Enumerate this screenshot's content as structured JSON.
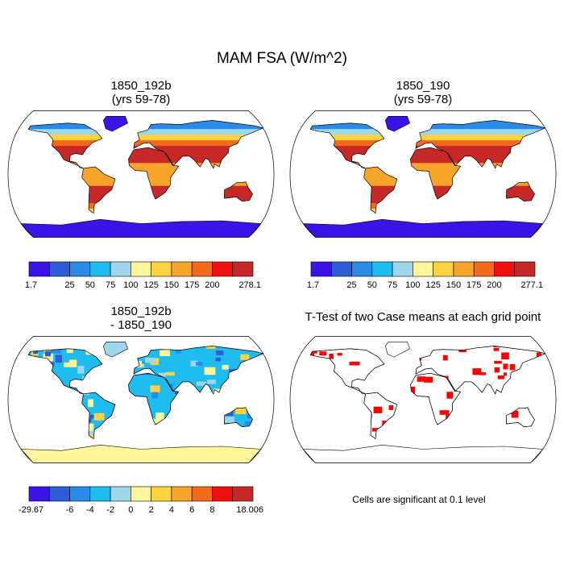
{
  "figure": {
    "title": "MAM FSA (W/m^2)"
  },
  "chart_data": [
    {
      "type": "heatmap",
      "title_line1": "1850_192b",
      "title_line2": "(yrs 59-78)",
      "projection": "Robinson world map",
      "colorbar": {
        "colors": [
          "#3a14e6",
          "#2e5cd6",
          "#2b8ae8",
          "#1fbcef",
          "#9ed6ec",
          "#fff59a",
          "#fcd240",
          "#f7a52a",
          "#f26a1a",
          "#f01010",
          "#c62828"
        ],
        "tick_labels": [
          "1.7",
          "25",
          "50",
          "75",
          "100",
          "125",
          "150",
          "175",
          "200",
          "278.1"
        ],
        "min": 1.7,
        "max": 278.1
      }
    },
    {
      "type": "heatmap",
      "title_line1": "1850_190",
      "title_line2": "(yrs 59-78)",
      "projection": "Robinson world map",
      "colorbar": {
        "colors": [
          "#3a14e6",
          "#2e5cd6",
          "#2b8ae8",
          "#1fbcef",
          "#9ed6ec",
          "#fff59a",
          "#fcd240",
          "#f7a52a",
          "#f26a1a",
          "#f01010",
          "#c62828"
        ],
        "tick_labels": [
          "1.7",
          "25",
          "50",
          "75",
          "100",
          "125",
          "150",
          "175",
          "200",
          "277.1"
        ],
        "min": 1.7,
        "max": 277.1
      }
    },
    {
      "type": "heatmap",
      "title_line1": "1850_192b",
      "title_line2": "- 1850_190",
      "projection": "Robinson world map",
      "colorbar": {
        "colors": [
          "#3a14e6",
          "#2e5cd6",
          "#2b8ae8",
          "#1fbcef",
          "#9ed6ec",
          "#fff59a",
          "#fcd240",
          "#f7a52a",
          "#f26a1a",
          "#f01010",
          "#c62828"
        ],
        "tick_labels": [
          "-29.67",
          "-6",
          "-4",
          "-2",
          "0",
          "2",
          "4",
          "6",
          "8",
          "18.006"
        ],
        "min": -29.67,
        "max": 18.006
      }
    },
    {
      "type": "heatmap",
      "title_line1": "T-Test of two Case means at each grid point",
      "projection": "Robinson world map",
      "significance_color": "#ff0000",
      "note": "Cells are significant at 0.1 level"
    }
  ]
}
